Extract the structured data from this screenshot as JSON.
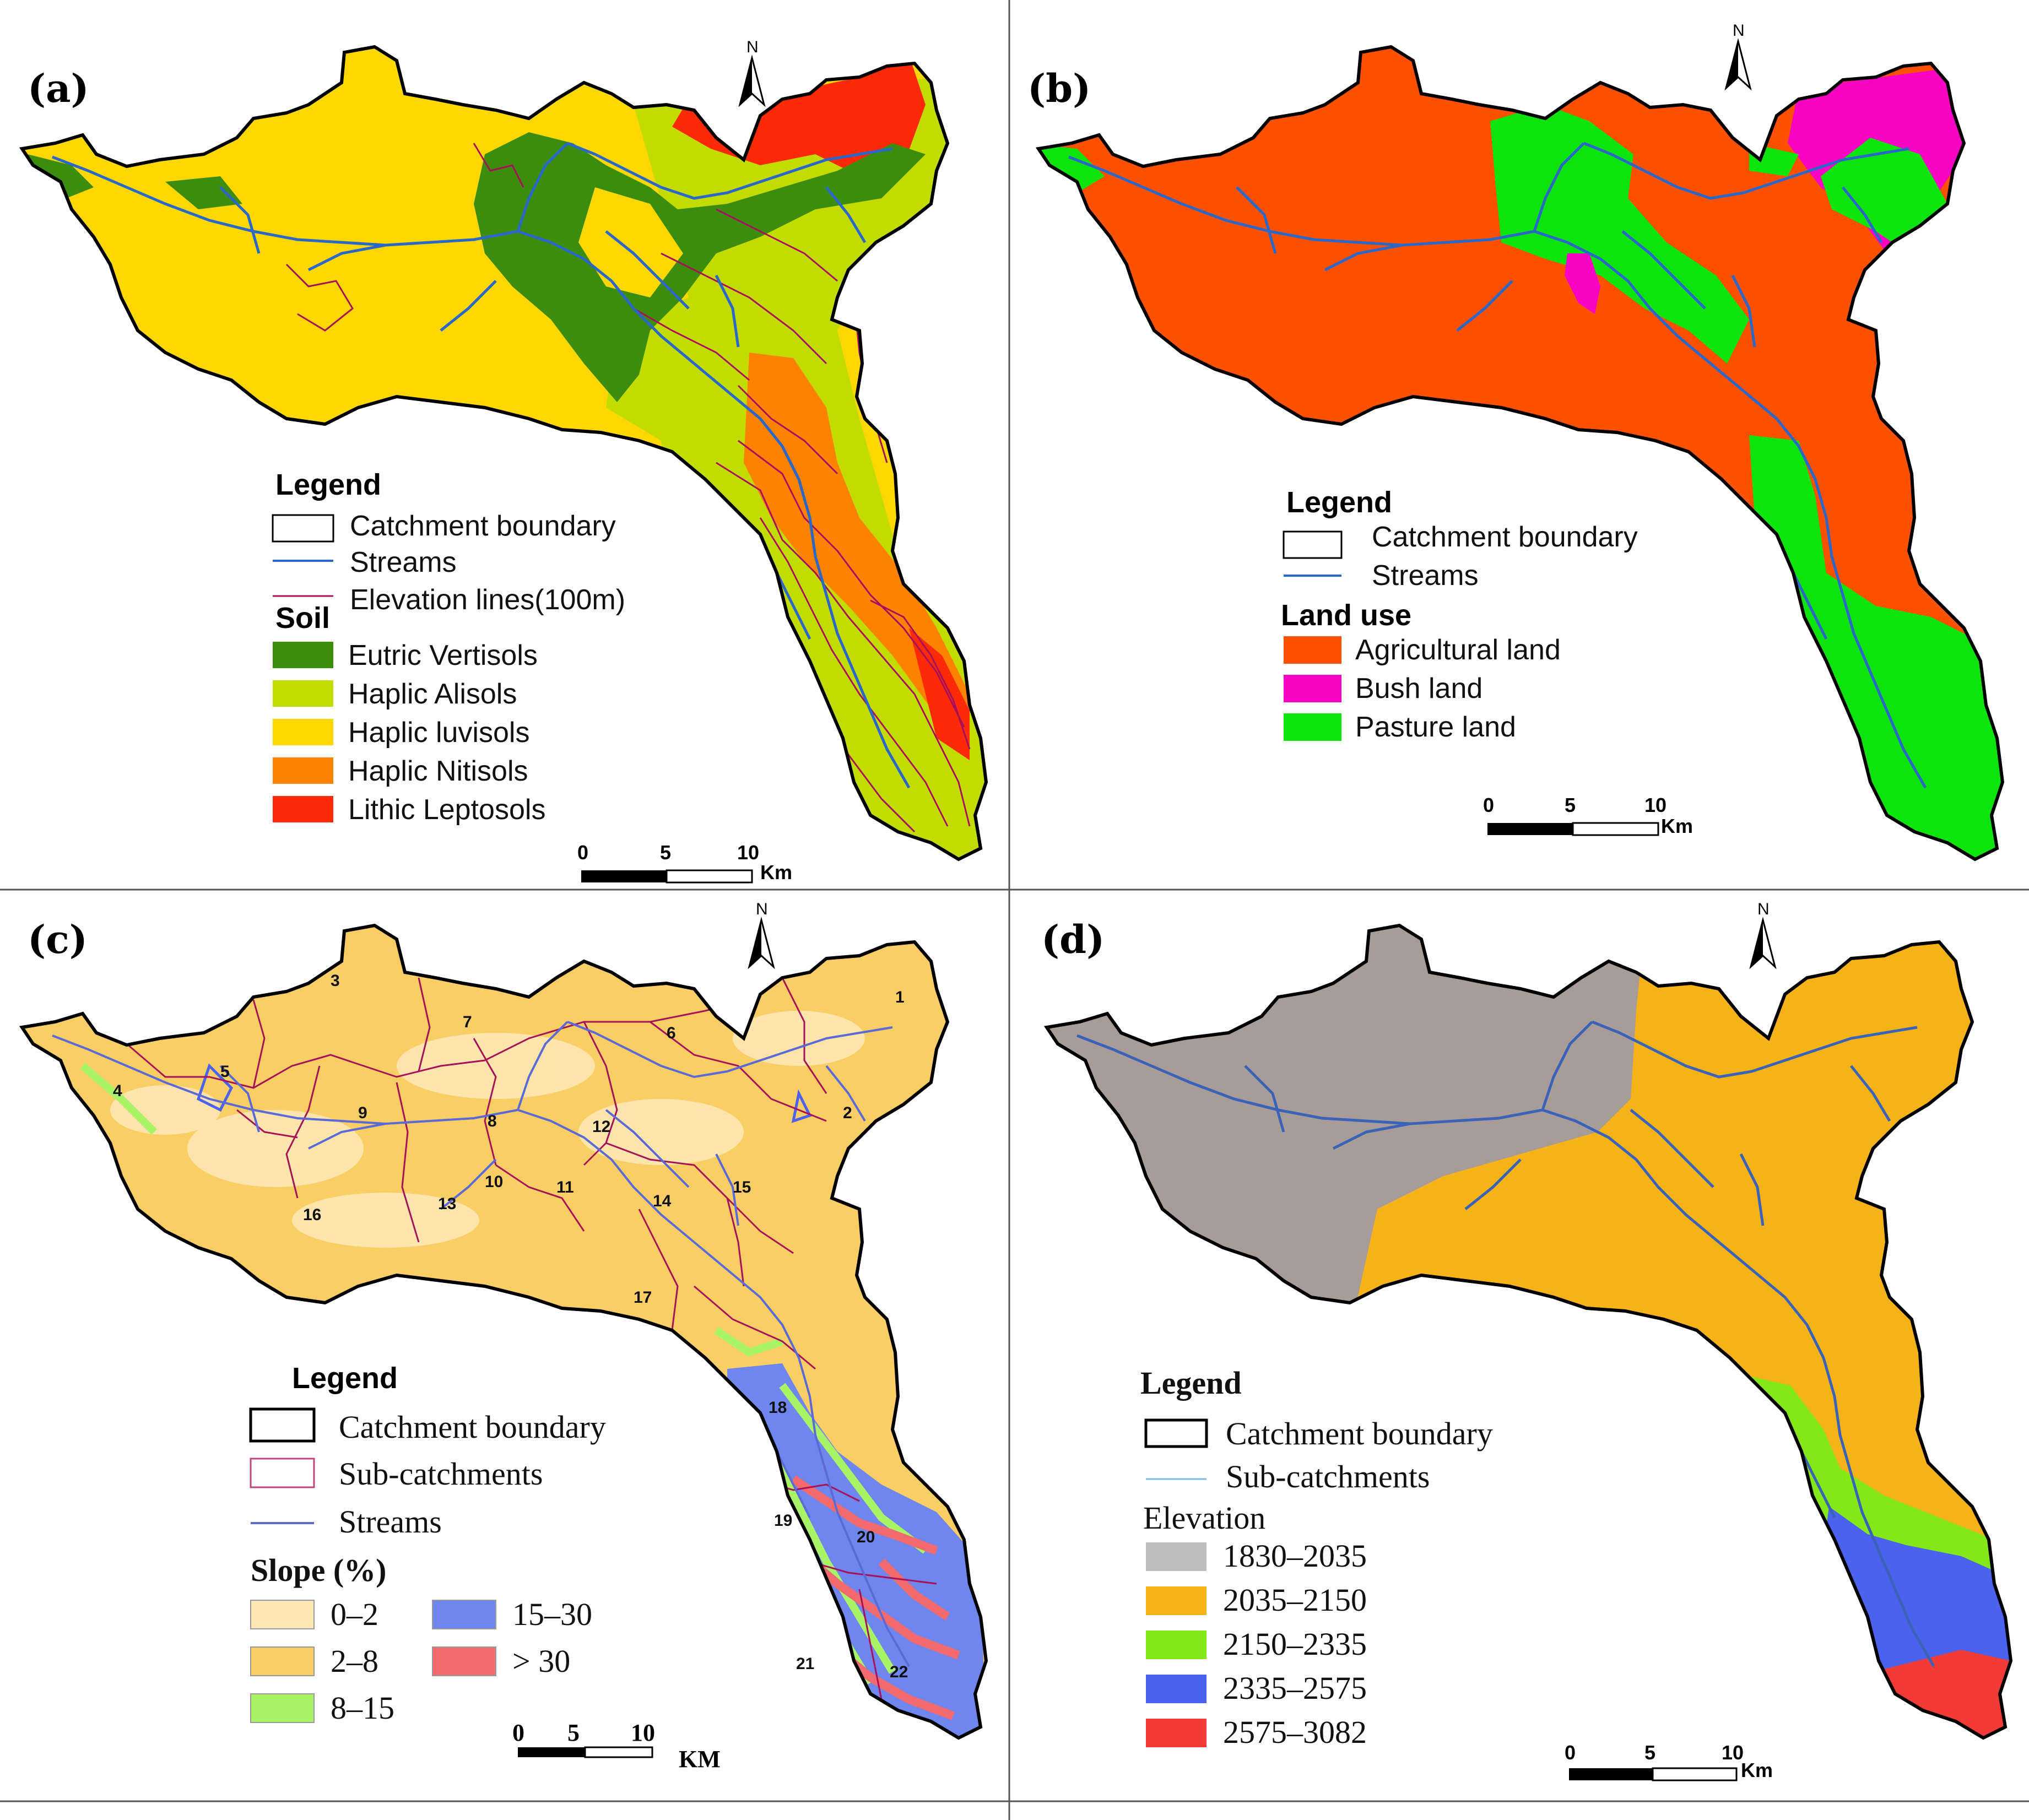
{
  "panels": {
    "a": {
      "letter": "(a)",
      "legend_title": "Legend",
      "items": [
        "Catchment boundary",
        "Streams",
        "Elevation lines(100m)"
      ],
      "soil_title": "Soil",
      "soil_classes": [
        {
          "label": "Eutric Vertisols",
          "color": "#3c8c0e"
        },
        {
          "label": "Haplic Alisols",
          "color": "#c2dc00"
        },
        {
          "label": "Haplic luvisols",
          "color": "#fcd700"
        },
        {
          "label": "Haplic Nitisols",
          "color": "#fd8200"
        },
        {
          "label": "Lithic Leptosols",
          "color": "#fd2a08"
        }
      ],
      "scale": {
        "ticks": [
          "0",
          "5",
          "10"
        ],
        "unit": "Km"
      }
    },
    "b": {
      "letter": "(b)",
      "legend_title": "Legend",
      "items": [
        "Catchment boundary",
        "Streams"
      ],
      "landuse_title": "Land use",
      "landuse_classes": [
        {
          "label": "Agricultural land",
          "color": "#fd5100"
        },
        {
          "label": "Bush land",
          "color": "#f803c4"
        },
        {
          "label": "Pasture land",
          "color": "#0de30d"
        }
      ],
      "scale": {
        "ticks": [
          "0",
          "5",
          "10"
        ],
        "unit": "Km"
      }
    },
    "c": {
      "letter": "(c)",
      "legend_title": "Legend",
      "items": [
        "Catchment boundary",
        "Sub-catchments",
        "Streams"
      ],
      "slope_title": "Slope (%)",
      "slope_classes": [
        {
          "label": "0–2",
          "color": "#fde7b4"
        },
        {
          "label": "2–8",
          "color": "#f9cf65"
        },
        {
          "label": "8–15",
          "color": "#a9f367"
        },
        {
          "label": "15–30",
          "color": "#6e86ee"
        },
        {
          "label": "> 30",
          "color": "#f26a6e"
        }
      ],
      "subcatchments": [
        "1",
        "2",
        "3",
        "4",
        "5",
        "6",
        "7",
        "8",
        "9",
        "10",
        "11",
        "12",
        "13",
        "14",
        "15",
        "16",
        "17",
        "18",
        "19",
        "20",
        "21",
        "22"
      ],
      "scale": {
        "ticks": [
          "0",
          "5",
          "10"
        ],
        "unit": "KM"
      }
    },
    "d": {
      "letter": "(d)",
      "legend_title": "Legend",
      "items": [
        "Catchment boundary",
        "Sub-catchments"
      ],
      "elev_title": "Elevation",
      "elev_classes": [
        {
          "label": "1830–2035",
          "color": "#bdbdbd"
        },
        {
          "label": "2035–2150",
          "color": "#f5b318"
        },
        {
          "label": "2150–2335",
          "color": "#84e818"
        },
        {
          "label": "2335–2575",
          "color": "#4b62ee"
        },
        {
          "label": "2575–3082",
          "color": "#f23a36"
        }
      ],
      "scale": {
        "ticks": [
          "0",
          "5",
          "10"
        ],
        "unit": "Km"
      }
    },
    "north": "N"
  }
}
